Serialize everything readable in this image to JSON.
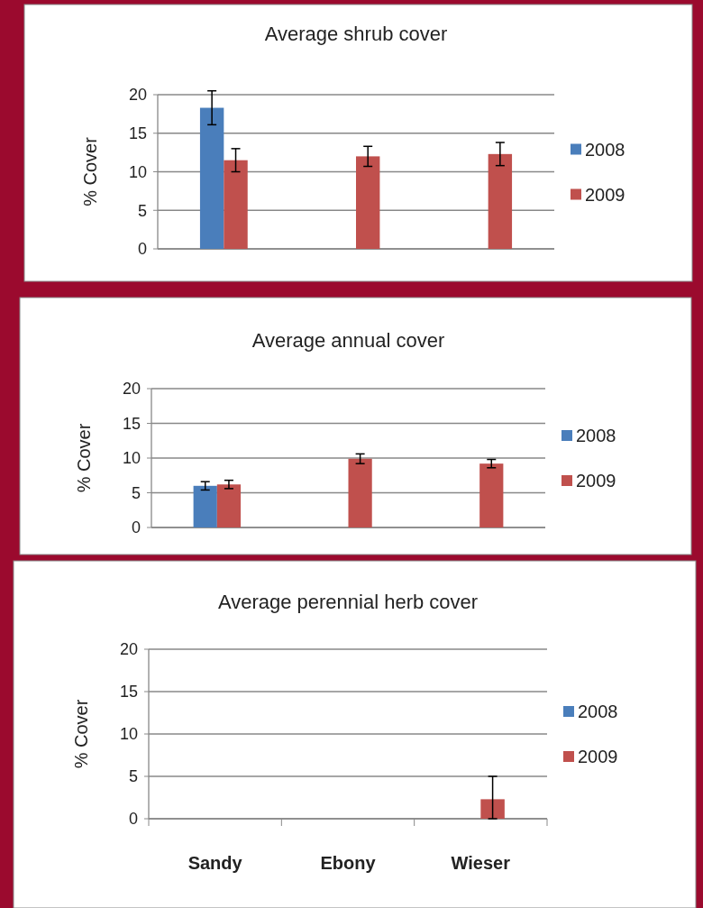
{
  "chart_data": [
    {
      "type": "bar",
      "title": "Average shrub cover",
      "ylabel": "% Cover",
      "categories": [
        null,
        null,
        null
      ],
      "series": [
        {
          "name": "2008",
          "color": "#4a7ebb",
          "values": [
            18.3,
            null,
            null
          ],
          "errors": [
            2.2,
            null,
            null
          ]
        },
        {
          "name": "2009",
          "color": "#c0504d",
          "values": [
            11.5,
            12.0,
            12.3
          ],
          "errors": [
            1.5,
            1.3,
            1.5
          ]
        }
      ],
      "ylim": [
        0,
        20
      ],
      "yticks": [
        0,
        5,
        10,
        15,
        20
      ],
      "grid": "y",
      "legend": "right",
      "tick_labels": "y"
    },
    {
      "type": "bar",
      "title": "Average annual cover",
      "ylabel": "% Cover",
      "categories": [
        null,
        null,
        null
      ],
      "series": [
        {
          "name": "2008",
          "color": "#4a7ebb",
          "values": [
            6.0,
            null,
            null
          ],
          "errors": [
            0.6,
            null,
            null
          ]
        },
        {
          "name": "2009",
          "color": "#c0504d",
          "values": [
            6.2,
            9.9,
            9.2
          ],
          "errors": [
            0.6,
            0.7,
            0.6
          ]
        }
      ],
      "ylim": [
        0,
        20
      ],
      "yticks": [
        0,
        5,
        10,
        15,
        20
      ],
      "grid": "y",
      "legend": "right",
      "tick_labels": "y"
    },
    {
      "type": "bar",
      "title": "Average perennial herb cover",
      "ylabel": "% Cover",
      "categories": [
        "Sandy",
        "Ebony",
        "Wieser"
      ],
      "series": [
        {
          "name": "2008",
          "color": "#4a7ebb",
          "values": [
            null,
            null,
            null
          ]
        },
        {
          "name": "2009",
          "color": "#c0504d",
          "values": [
            null,
            null,
            2.3
          ],
          "errors": [
            null,
            null,
            [
              0,
              5.0
            ]
          ]
        }
      ],
      "ylim": [
        0,
        20
      ],
      "yticks": [
        0,
        5,
        10,
        15,
        20
      ],
      "grid": "y",
      "legend": "right"
    }
  ]
}
